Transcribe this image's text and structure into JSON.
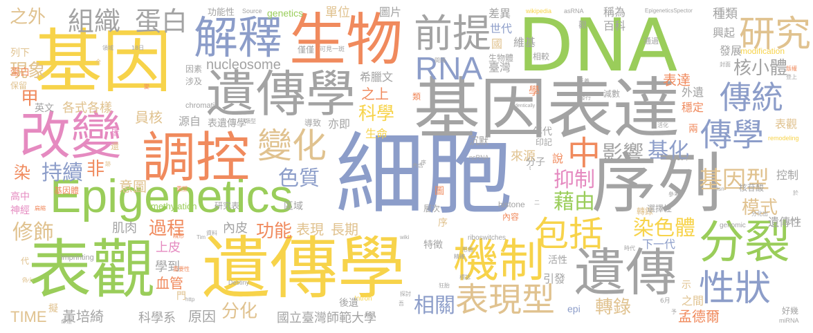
{
  "colors": {
    "green": "#9ACD5A",
    "orange": "#F08A5D",
    "blue": "#8C9DC9",
    "gray": "#A3A3A3",
    "yellow": "#F7D34A",
    "tan": "#E0C28F",
    "pink": "#E58AC0"
  },
  "words": [
    {
      "text": "細胞",
      "color": "blue"
    },
    {
      "text": "DNA",
      "color": "green"
    },
    {
      "text": "表觀",
      "color": "green"
    },
    {
      "text": "遺傳學",
      "color": "yellow"
    },
    {
      "text": "基因",
      "color": "yellow"
    },
    {
      "text": "基因表達",
      "color": "gray"
    },
    {
      "text": "序列",
      "color": "gray"
    },
    {
      "text": "遺傳學",
      "color": "gray"
    },
    {
      "text": "生物",
      "color": "orange"
    },
    {
      "text": "Epigenetics",
      "color": "green"
    },
    {
      "text": "改變",
      "color": "pink"
    },
    {
      "text": "調控",
      "color": "orange"
    },
    {
      "text": "解釋",
      "color": "blue"
    },
    {
      "text": "機制",
      "color": "yellow"
    },
    {
      "text": "遺傳",
      "color": "gray"
    },
    {
      "text": "分裂",
      "color": "green"
    },
    {
      "text": "前提",
      "color": "gray"
    },
    {
      "text": "研究",
      "color": "tan"
    },
    {
      "text": "傳統",
      "color": "blue"
    },
    {
      "text": "傳學",
      "color": "blue"
    },
    {
      "text": "變化",
      "color": "tan"
    },
    {
      "text": "表現型",
      "color": "tan"
    },
    {
      "text": "包括",
      "color": "yellow"
    },
    {
      "text": "性狀",
      "color": "blue"
    },
    {
      "text": "RNA",
      "color": "blue"
    },
    {
      "text": "組織",
      "color": "gray"
    },
    {
      "text": "蛋白",
      "color": "gray"
    },
    {
      "text": "中",
      "color": "orange"
    },
    {
      "text": "基因型",
      "color": "tan"
    },
    {
      "text": "核小體",
      "color": "gray"
    },
    {
      "text": "染色體",
      "color": "yellow"
    },
    {
      "text": "影響",
      "color": "gray"
    },
    {
      "text": "基化",
      "color": "blue"
    },
    {
      "text": "藉由",
      "color": "green"
    },
    {
      "text": "抑制",
      "color": "pink"
    },
    {
      "text": "色質",
      "color": "blue"
    },
    {
      "text": "持續",
      "color": "blue"
    },
    {
      "text": "修飾",
      "color": "tan"
    },
    {
      "text": "過程",
      "color": "orange"
    },
    {
      "text": "功能",
      "color": "orange"
    },
    {
      "text": "相關",
      "color": "blue"
    },
    {
      "text": "轉錄",
      "color": "tan"
    },
    {
      "text": "模式",
      "color": "tan"
    },
    {
      "text": "科學",
      "color": "yellow"
    },
    {
      "text": "之外",
      "color": "tan"
    },
    {
      "text": "現象",
      "color": "tan"
    },
    {
      "text": "甲",
      "color": "orange"
    },
    {
      "text": "非",
      "color": "orange"
    },
    {
      "text": "染",
      "color": "orange"
    },
    {
      "text": "分化",
      "color": "tan"
    },
    {
      "text": "TIME",
      "color": "tan"
    },
    {
      "text": "黃培綺",
      "color": "gray"
    },
    {
      "text": "科學系",
      "color": "gray"
    },
    {
      "text": "原因",
      "color": "gray"
    },
    {
      "text": "國立臺灣師範大學",
      "color": "gray"
    },
    {
      "text": "孟德爾",
      "color": "orange"
    },
    {
      "text": "肌肉",
      "color": "gray"
    },
    {
      "text": "內皮",
      "color": "gray"
    },
    {
      "text": "表現",
      "color": "tan"
    },
    {
      "text": "長期",
      "color": "tan"
    },
    {
      "text": "上皮",
      "color": "pink"
    },
    {
      "text": "血管",
      "color": "orange"
    },
    {
      "text": "學到",
      "color": "gray"
    },
    {
      "text": "意圖",
      "color": "tan"
    },
    {
      "text": "員核",
      "color": "tan"
    },
    {
      "text": "各式各樣",
      "color": "tan"
    },
    {
      "text": "英文",
      "color": "gray"
    },
    {
      "text": "nucleosome",
      "color": "gray"
    },
    {
      "text": "genetics",
      "color": "green"
    },
    {
      "text": "單位",
      "color": "tan"
    },
    {
      "text": "圖片",
      "color": "gray"
    },
    {
      "text": "差異",
      "color": "gray"
    },
    {
      "text": "稱為",
      "color": "gray"
    },
    {
      "text": "種類",
      "color": "gray"
    },
    {
      "text": "興起",
      "color": "gray"
    },
    {
      "text": "發展",
      "color": "gray"
    },
    {
      "text": "modification",
      "color": "yellow"
    },
    {
      "text": "表達",
      "color": "orange"
    },
    {
      "text": "外遺",
      "color": "gray"
    },
    {
      "text": "穩定",
      "color": "orange"
    },
    {
      "text": "表觀",
      "color": "tan"
    },
    {
      "text": "控制",
      "color": "gray"
    },
    {
      "text": "遺傳性",
      "color": "gray"
    },
    {
      "text": "之間",
      "color": "tan"
    },
    {
      "text": "下一代",
      "color": "blue"
    },
    {
      "text": "轉錄",
      "color": "tan"
    },
    {
      "text": "世代",
      "color": "blue"
    },
    {
      "text": "維基",
      "color": "gray"
    },
    {
      "text": "百科",
      "color": "gray"
    },
    {
      "text": "臺灣",
      "color": "gray"
    },
    {
      "text": "希臘文",
      "color": "gray"
    },
    {
      "text": "之上",
      "color": "orange"
    },
    {
      "text": "生命",
      "color": "yellow"
    },
    {
      "text": "來源",
      "color": "tan"
    },
    {
      "text": "年代",
      "color": "gray"
    },
    {
      "text": "亦即",
      "color": "gray"
    },
    {
      "text": "表遺傳學",
      "color": "gray"
    },
    {
      "text": "源自",
      "color": "gray"
    },
    {
      "text": "分子",
      "color": "gray"
    },
    {
      "text": "活性",
      "color": "gray"
    },
    {
      "text": "特徵",
      "color": "gray"
    },
    {
      "text": "引發",
      "color": "gray"
    },
    {
      "text": "epi",
      "color": "blue"
    },
    {
      "text": "功能性",
      "color": "gray"
    },
    {
      "text": "Source",
      "color": "gray"
    },
    {
      "text": "wikipedia",
      "color": "yellow"
    },
    {
      "text": "asRNA",
      "color": "gray"
    },
    {
      "text": "EpigeneticsSpector",
      "color": "gray"
    },
    {
      "text": "chromatin",
      "color": "gray"
    },
    {
      "text": "histone",
      "color": "gray"
    },
    {
      "text": "methylation",
      "color": "green"
    },
    {
      "text": "imprinting",
      "color": "gray"
    },
    {
      "text": "riboswitches",
      "color": "gray"
    },
    {
      "text": "genomic",
      "color": "gray"
    },
    {
      "text": "remodeling",
      "color": "yellow"
    },
    {
      "text": "ncRNA",
      "color": "gray"
    },
    {
      "text": "Intron",
      "color": "yellow"
    },
    {
      "text": "miRNA",
      "color": "gray"
    },
    {
      "text": "Destiny",
      "color": "gray"
    },
    {
      "text": "基因體",
      "color": "orange"
    },
    {
      "text": "研究表",
      "color": "gray"
    },
    {
      "text": "高中",
      "color": "pink"
    },
    {
      "text": "神經",
      "color": "pink"
    },
    {
      "text": "列下",
      "color": "tan"
    },
    {
      "text": "蛋白",
      "color": "orange"
    },
    {
      "text": "保留",
      "color": "tan"
    },
    {
      "text": "因素",
      "color": "gray"
    },
    {
      "text": "涉及",
      "color": "gray"
    },
    {
      "text": "導致",
      "color": "gray"
    },
    {
      "text": "沉默",
      "color": "gray"
    },
    {
      "text": "區域",
      "color": "gray"
    },
    {
      "text": "選擇性",
      "color": "gray"
    },
    {
      "text": "核苷酸",
      "color": "gray"
    },
    {
      "text": "內容",
      "color": "orange"
    },
    {
      "text": "後遺",
      "color": "gray"
    },
    {
      "text": "說",
      "color": "orange"
    },
    {
      "text": "好幾",
      "color": "gray"
    },
    {
      "text": "印記",
      "color": "gray"
    },
    {
      "text": "減數",
      "color": "gray"
    },
    {
      "text": "相較",
      "color": "gray"
    },
    {
      "text": "通過",
      "color": "gray"
    },
    {
      "text": "僅僅",
      "color": "gray"
    },
    {
      "text": "可見一斑",
      "color": "gray"
    },
    {
      "text": "生物體",
      "color": "gray"
    },
    {
      "text": "國",
      "color": "tan"
    },
    {
      "text": "類",
      "color": "orange"
    },
    {
      "text": "學",
      "color": "orange"
    },
    {
      "text": "示",
      "color": "tan"
    },
    {
      "text": "兩",
      "color": "orange"
    },
    {
      "text": "擬",
      "color": "tan"
    },
    {
      "text": "門",
      "color": "tan"
    },
    {
      "text": "代",
      "color": "tan"
    },
    {
      "text": "層次",
      "color": "gray"
    },
    {
      "text": "圖",
      "color": "orange"
    },
    {
      "text": "序",
      "color": "tan"
    },
    {
      "text": "2010年",
      "color": "gray"
    },
    {
      "text": "參考",
      "color": "gray"
    },
    {
      "text": "6月",
      "color": "gray"
    },
    {
      "text": "18日",
      "color": "gray"
    },
    {
      "text": "領域",
      "color": "gray"
    },
    {
      "text": "時代",
      "color": "gray"
    },
    {
      "text": "分化出",
      "color": "gray"
    },
    {
      "text": "之下",
      "color": "gray"
    },
    {
      "text": "登上",
      "color": "gray"
    },
    {
      "text": "版權",
      "color": "orange"
    },
    {
      "text": "封面",
      "color": "gray"
    },
    {
      "text": "Isn",
      "color": "gray"
    },
    {
      "text": "http",
      "color": "gray"
    },
    {
      "text": "org",
      "color": "gray"
    },
    {
      "text": "wiki",
      "color": "gray"
    },
    {
      "text": "Tim",
      "color": "gray"
    },
    {
      "text": "Identically",
      "color": "gray"
    },
    {
      "text": "反義",
      "color": "gray"
    },
    {
      "text": "發行",
      "color": "gray"
    },
    {
      "text": "活化",
      "color": "gray"
    },
    {
      "text": "重塑",
      "color": "orange"
    },
    {
      "text": "重要性",
      "color": "orange"
    },
    {
      "text": "形態",
      "color": "gray"
    },
    {
      "text": "精確",
      "color": "gray"
    },
    {
      "text": "標誌",
      "color": "gray"
    },
    {
      "text": "探討",
      "color": "gray"
    },
    {
      "text": "命運",
      "color": "gray"
    },
    {
      "text": "精形",
      "color": "orange"
    },
    {
      "text": "類型",
      "color": "gray"
    },
    {
      "text": "變",
      "color": "orange"
    },
    {
      "text": "偽小",
      "color": "tan"
    },
    {
      "text": "全",
      "color": "tan"
    },
    {
      "text": "皆",
      "color": "pink"
    },
    {
      "text": "還",
      "color": "tan"
    },
    {
      "text": "跡",
      "color": "tan"
    },
    {
      "text": "扁縮",
      "color": "orange"
    },
    {
      "text": "觀",
      "color": "gray"
    },
    {
      "text": "間隔",
      "color": "gray"
    },
    {
      "text": "內含",
      "color": "gray"
    },
    {
      "text": "資料",
      "color": "gray"
    },
    {
      "text": "狂胎",
      "color": "gray"
    },
    {
      "text": "予",
      "color": "gray"
    },
    {
      "text": "t",
      "color": "gray"
    },
    {
      "text": "於",
      "color": "gray"
    },
    {
      "text": "吾",
      "color": "gray"
    },
    {
      "text": "二",
      "color": "gray"
    },
    {
      "text": "序",
      "color": "gray"
    }
  ]
}
